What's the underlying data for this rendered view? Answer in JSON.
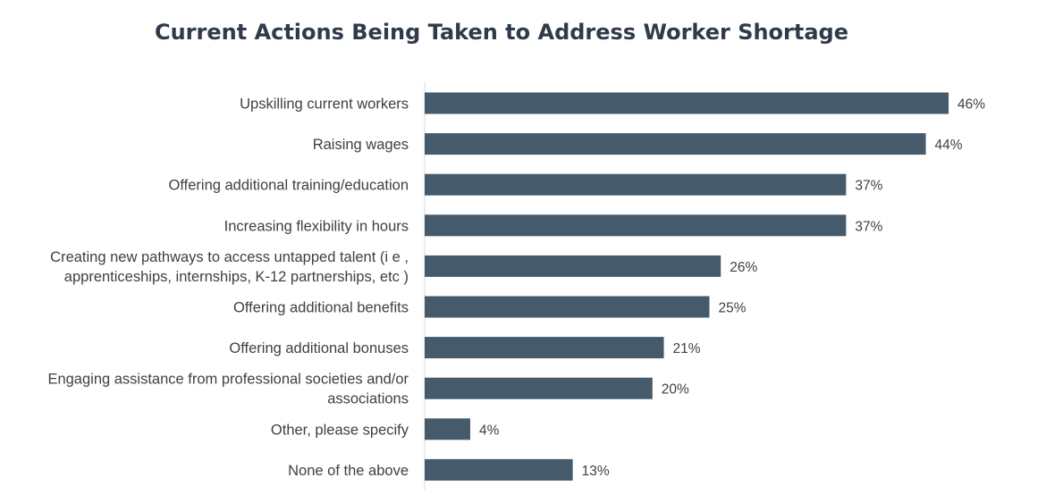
{
  "chart_data": {
    "type": "bar",
    "orientation": "horizontal",
    "title": "Current Actions Being Taken to Address Worker Shortage",
    "categories": [
      [
        "Upskilling current workers"
      ],
      [
        "Raising wages"
      ],
      [
        "Offering additional training/education"
      ],
      [
        "Increasing flexibility in hours"
      ],
      [
        "Creating new pathways to access untapped talent (i e ,",
        "apprenticeships, internships, K-12 partnerships, etc )"
      ],
      [
        "Offering additional benefits"
      ],
      [
        "Offering additional bonuses"
      ],
      [
        "Engaging assistance from professional societies and/or",
        "associations"
      ],
      [
        "Other, please specify"
      ],
      [
        "None of the above"
      ]
    ],
    "values": [
      46,
      44,
      37,
      37,
      26,
      25,
      21,
      20,
      4,
      13
    ],
    "value_labels": [
      "46%",
      "44%",
      "37%",
      "37%",
      "26%",
      "25%",
      "21%",
      "20%",
      "4%",
      "13%"
    ],
    "xlim": [
      0,
      50
    ],
    "grid": false,
    "legend": "none",
    "colors": {
      "bar": "#455a6b",
      "axis": "#d9d9d9",
      "label_text": "#404040",
      "title_text": "#2f3b4a"
    }
  }
}
